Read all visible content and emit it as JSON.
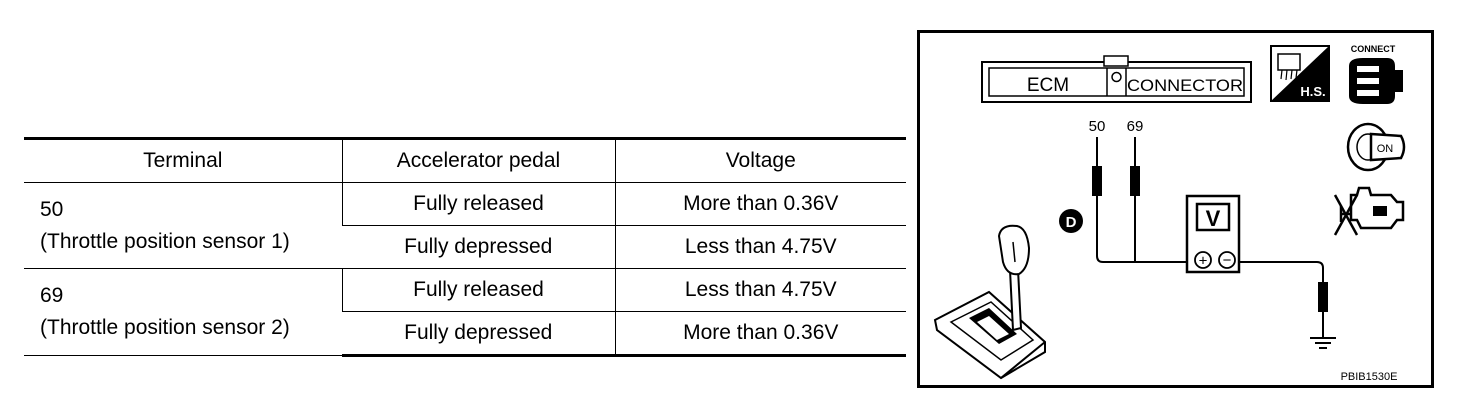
{
  "table": {
    "headers": [
      "Terminal",
      "Accelerator pedal",
      "Voltage"
    ],
    "groups": [
      {
        "terminal": "50",
        "sensor": "(Throttle position sensor 1)",
        "rows": [
          {
            "pedal": "Fully released",
            "voltage": "More than 0.36V"
          },
          {
            "pedal": "Fully depressed",
            "voltage": "Less than 4.75V"
          }
        ]
      },
      {
        "terminal": "69",
        "sensor": "(Throttle position sensor 2)",
        "rows": [
          {
            "pedal": "Fully released",
            "voltage": "Less than 4.75V"
          },
          {
            "pedal": "Fully depressed",
            "voltage": "More than 0.36V"
          }
        ]
      }
    ]
  },
  "diagram": {
    "connector_left": "ECM",
    "connector_right": "CONNECTOR",
    "pin_1": "50",
    "pin_2": "69",
    "meter": "V",
    "plus": "+",
    "minus": "−",
    "hs_label": "H.S.",
    "connect_label": "CONNECT",
    "on_label": "ON",
    "gear": "D",
    "code": "PBIB1530E"
  }
}
